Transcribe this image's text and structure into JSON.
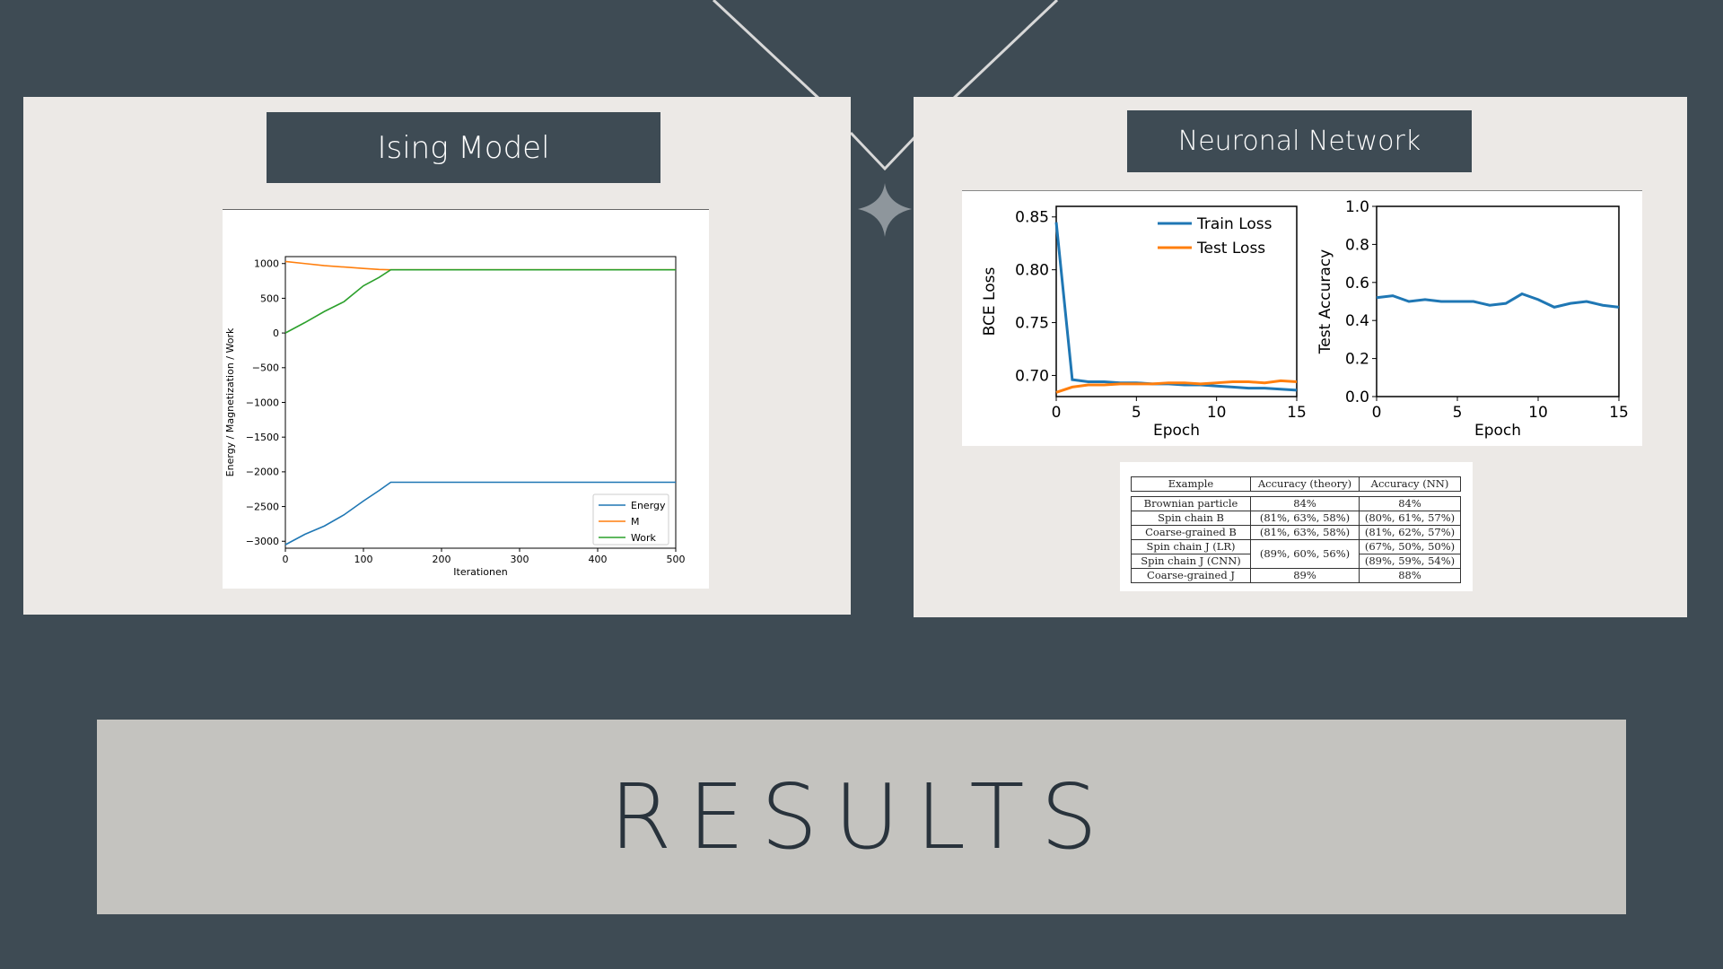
{
  "slide_title": "RESULTS",
  "left_panel": {
    "heading": "Ising Model",
    "chart": {
      "type": "line",
      "xlabel": "Iterationen",
      "ylabel": "Energy / Magnetization / Work",
      "xticks": [
        "0",
        "100",
        "200",
        "300",
        "400",
        "500"
      ],
      "yticks": [
        "1000",
        "500",
        "0",
        "−500",
        "−1000",
        "−1500",
        "−2000",
        "−2500",
        "−3000"
      ],
      "legend": [
        "Energy",
        "M",
        "Work"
      ]
    }
  },
  "right_panel": {
    "heading": "Neuronal Network",
    "loss_chart": {
      "ylabel": "BCE Loss",
      "xlabel": "Epoch",
      "xticks": [
        "0",
        "5",
        "10",
        "15"
      ],
      "yticks": [
        "0.85",
        "0.80",
        "0.75",
        "0.70"
      ],
      "legend": [
        "Train Loss",
        "Test Loss"
      ]
    },
    "acc_chart": {
      "ylabel": "Test Accuracy",
      "xlabel": "Epoch",
      "xticks": [
        "0",
        "5",
        "10",
        "15"
      ],
      "yticks": [
        "1.0",
        "0.8",
        "0.6",
        "0.4",
        "0.2",
        "0.0"
      ]
    },
    "table": {
      "headers": [
        "Example",
        "Accuracy (theory)",
        "Accuracy (NN)"
      ],
      "rows": [
        [
          "Brownian particle",
          "84%",
          "84%"
        ],
        [
          "Spin chain B",
          "(81%, 63%, 58%)",
          "(80%, 61%, 57%)"
        ],
        [
          "Coarse-grained B",
          "(81%, 63%, 58%)",
          "(81%, 62%, 57%)"
        ],
        [
          "Spin chain J (LR)",
          "(89%, 60%, 56%)",
          "(67%, 50%, 50%)"
        ],
        [
          "Spin chain J (CNN)",
          "",
          "(89%, 59%, 54%)"
        ],
        [
          "Coarse-grained J",
          "89%",
          "88%"
        ]
      ]
    }
  },
  "colors": {
    "background": "#3e4b54",
    "panel": "#ece9e6",
    "results_band": "#c4c3bf",
    "series_blue": "#1f77b4",
    "series_orange": "#ff7f0e",
    "series_green": "#2ca02c"
  },
  "chart_data": [
    {
      "type": "line",
      "title": "",
      "xlabel": "Iterationen",
      "ylabel": "Energy / Magnetization / Work",
      "xlim": [
        0,
        500
      ],
      "ylim": [
        -3100,
        1100
      ],
      "series": [
        {
          "name": "Energy",
          "x": [
            0,
            25,
            50,
            75,
            100,
            120,
            135,
            200,
            300,
            400,
            500
          ],
          "y": [
            -3050,
            -2900,
            -2780,
            -2620,
            -2420,
            -2270,
            -2150,
            -2150,
            -2150,
            -2150,
            -2150
          ]
        },
        {
          "name": "M",
          "x": [
            0,
            25,
            50,
            75,
            100,
            120,
            135,
            200,
            300,
            400,
            500
          ],
          "y": [
            1030,
            1000,
            970,
            950,
            930,
            915,
            910,
            910,
            910,
            910,
            910
          ]
        },
        {
          "name": "Work",
          "x": [
            0,
            25,
            50,
            75,
            100,
            120,
            135,
            200,
            300,
            400,
            500
          ],
          "y": [
            0,
            150,
            310,
            450,
            680,
            800,
            910,
            910,
            910,
            910,
            910
          ]
        }
      ]
    },
    {
      "type": "line",
      "title": "",
      "xlabel": "Epoch",
      "ylabel": "BCE Loss",
      "xlim": [
        0,
        15
      ],
      "ylim": [
        0.68,
        0.86
      ],
      "series": [
        {
          "name": "Train Loss",
          "x": [
            0,
            1,
            2,
            3,
            4,
            5,
            6,
            7,
            8,
            9,
            10,
            11,
            12,
            13,
            14,
            15
          ],
          "y": [
            0.845,
            0.696,
            0.694,
            0.694,
            0.693,
            0.693,
            0.692,
            0.692,
            0.691,
            0.691,
            0.69,
            0.689,
            0.688,
            0.688,
            0.687,
            0.686
          ]
        },
        {
          "name": "Test Loss",
          "x": [
            0,
            1,
            2,
            3,
            4,
            5,
            6,
            7,
            8,
            9,
            10,
            11,
            12,
            13,
            14,
            15
          ],
          "y": [
            0.684,
            0.689,
            0.691,
            0.691,
            0.692,
            0.692,
            0.692,
            0.693,
            0.693,
            0.692,
            0.693,
            0.694,
            0.694,
            0.693,
            0.695,
            0.694
          ]
        }
      ]
    },
    {
      "type": "line",
      "title": "",
      "xlabel": "Epoch",
      "ylabel": "Test Accuracy",
      "xlim": [
        0,
        15
      ],
      "ylim": [
        0,
        1
      ],
      "series": [
        {
          "x": [
            0,
            1,
            2,
            3,
            4,
            5,
            6,
            7,
            8,
            9,
            10,
            11,
            12,
            13,
            14,
            15
          ],
          "y": [
            0.52,
            0.53,
            0.5,
            0.51,
            0.5,
            0.5,
            0.5,
            0.48,
            0.49,
            0.54,
            0.51,
            0.47,
            0.49,
            0.5,
            0.48,
            0.47
          ]
        }
      ]
    }
  ]
}
